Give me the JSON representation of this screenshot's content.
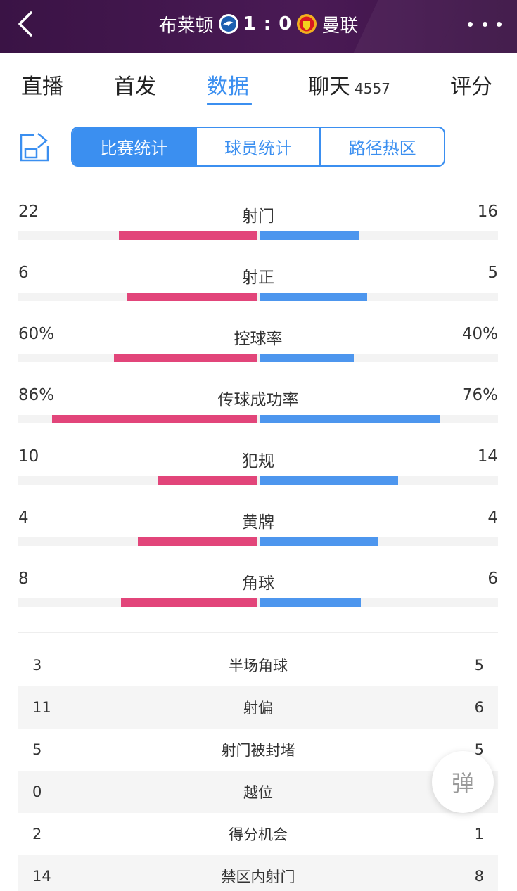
{
  "header": {
    "home_team": "布莱顿",
    "away_team": "曼联",
    "score": "1 : 0",
    "home_crest": "brighton-crest-icon",
    "away_crest": "manutd-crest-icon"
  },
  "tabs": [
    {
      "label": "直播"
    },
    {
      "label": "首发"
    },
    {
      "label": "数据"
    },
    {
      "label": "聊天",
      "count": "4557"
    },
    {
      "label": "评分"
    }
  ],
  "segments": [
    "比赛统计",
    "球员统计",
    "路径热区"
  ],
  "colors": {
    "home": "#e2457a",
    "away": "#4d96ee",
    "accent": "#3b8ff0",
    "header": "#4a1a55"
  },
  "bar_stats": [
    {
      "label": "射门",
      "home": "22",
      "away": "16",
      "home_share": 0.58,
      "away_share": 0.42
    },
    {
      "label": "射正",
      "home": "6",
      "away": "5",
      "home_share": 0.545,
      "away_share": 0.455
    },
    {
      "label": "控球率",
      "home": "60%",
      "away": "40%",
      "home_share": 0.6,
      "away_share": 0.4
    },
    {
      "label": "传球成功率",
      "home": "86%",
      "away": "76%",
      "home_share": 0.86,
      "away_share": 0.76
    },
    {
      "label": "犯规",
      "home": "10",
      "away": "14",
      "home_share": 0.417,
      "away_share": 0.583
    },
    {
      "label": "黄牌",
      "home": "4",
      "away": "4",
      "home_share": 0.5,
      "away_share": 0.5
    },
    {
      "label": "角球",
      "home": "8",
      "away": "6",
      "home_share": 0.571,
      "away_share": 0.429
    }
  ],
  "table_stats": [
    {
      "label": "半场角球",
      "home": "3",
      "away": "5"
    },
    {
      "label": "射偏",
      "home": "11",
      "away": "6"
    },
    {
      "label": "射门被封堵",
      "home": "5",
      "away": "5"
    },
    {
      "label": "越位",
      "home": "0",
      "away": ""
    },
    {
      "label": "得分机会",
      "home": "2",
      "away": "1"
    },
    {
      "label": "禁区内射门",
      "home": "14",
      "away": "8"
    }
  ],
  "float_button": "弹"
}
